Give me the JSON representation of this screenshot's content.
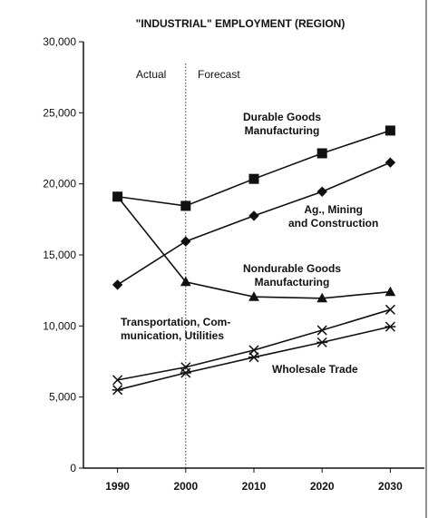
{
  "chart_data": {
    "type": "line",
    "title": "\"INDUSTRIAL\" EMPLOYMENT (REGION)",
    "annotations": {
      "actual": "Actual",
      "forecast": "Forecast"
    },
    "forecast_start": 2000,
    "x": [
      1990,
      2000,
      2010,
      2020,
      2030
    ],
    "xlim": [
      1985,
      2035
    ],
    "xticks": [
      1990,
      2000,
      2010,
      2020,
      2030
    ],
    "ylim": [
      0,
      30000
    ],
    "yticks": [
      0,
      {
        "value": 5000,
        "label": "5,000"
      },
      {
        "value": 10000,
        "label": "10,000"
      },
      {
        "value": 15000,
        "label": "15,000"
      },
      {
        "value": 20000,
        "label": "20,000"
      },
      {
        "value": 25000,
        "label": "25,000"
      },
      {
        "value": 30000,
        "label": "30,000"
      }
    ],
    "grid": false,
    "series": [
      {
        "name": "Durable Goods\nManufacturing",
        "color": "#111111",
        "marker": "square",
        "values": [
          19100,
          18450,
          20350,
          22150,
          23750
        ]
      },
      {
        "name": "Ag., Mining\nand Construction",
        "color": "#111111",
        "marker": "diamond",
        "values": [
          12900,
          15950,
          17750,
          19450,
          21500
        ]
      },
      {
        "name": "Nondurable Goods\nManufacturing",
        "color": "#111111",
        "marker": "triangle",
        "values": [
          19100,
          13100,
          12050,
          11950,
          12400
        ]
      },
      {
        "name": "Transportation, Com-\nmunication, Utilities",
        "color": "#111111",
        "marker": "x",
        "values": [
          6200,
          7100,
          8300,
          9700,
          11150
        ]
      },
      {
        "name": "Wholesale Trade",
        "color": "#111111",
        "marker": "asterisk",
        "values": [
          5500,
          6700,
          7800,
          8850,
          9950
        ]
      }
    ]
  }
}
